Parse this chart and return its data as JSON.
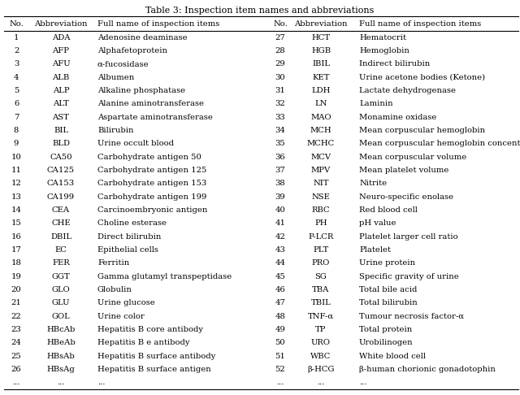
{
  "title": "Table 3: Inspection item names and abbreviations",
  "headers_left": [
    "No.",
    "Abbreviation",
    "Full name of inspection items"
  ],
  "headers_right": [
    "No.",
    "Abbreviation",
    "Full name of inspection items"
  ],
  "left_data": [
    [
      "1",
      "ADA",
      "Adenosine deaminase"
    ],
    [
      "2",
      "AFP",
      "Alphafetoprotein"
    ],
    [
      "3",
      "AFU",
      "α-fucosidase"
    ],
    [
      "4",
      "ALB",
      "Albumen"
    ],
    [
      "5",
      "ALP",
      "Alkaline phosphatase"
    ],
    [
      "6",
      "ALT",
      "Alanine aminotransferase"
    ],
    [
      "7",
      "AST",
      "Aspartate aminotransferase"
    ],
    [
      "8",
      "BIL",
      "Bilirubin"
    ],
    [
      "9",
      "BLD",
      "Urine occult blood"
    ],
    [
      "10",
      "CA50",
      "Carbohydrate antigen 50"
    ],
    [
      "11",
      "CA125",
      "Carbohydrate antigen 125"
    ],
    [
      "12",
      "CA153",
      "Carbohydrate antigen 153"
    ],
    [
      "13",
      "CA199",
      "Carbohydrate antigen 199"
    ],
    [
      "14",
      "CEA",
      "Carcinoembryonic antigen"
    ],
    [
      "15",
      "CHE",
      "Choline esterase"
    ],
    [
      "16",
      "DBIL",
      "Direct bilirubin"
    ],
    [
      "17",
      "EC",
      "Epithelial cells"
    ],
    [
      "18",
      "FER",
      "Ferritin"
    ],
    [
      "19",
      "GGT",
      "Gamma glutamyl transpeptidase"
    ],
    [
      "20",
      "GLO",
      "Globulin"
    ],
    [
      "21",
      "GLU",
      "Urine glucose"
    ],
    [
      "22",
      "GOL",
      "Urine color"
    ],
    [
      "23",
      "HBcAb",
      "Hepatitis B core antibody"
    ],
    [
      "24",
      "HBeAb",
      "Hepatitis B e antibody"
    ],
    [
      "25",
      "HBsAb",
      "Hepatitis B surface antibody"
    ],
    [
      "26",
      "HBsAg",
      "Hepatitis B surface antigen"
    ],
    [
      "...",
      "...",
      "..."
    ]
  ],
  "right_data": [
    [
      "27",
      "HCT",
      "Hematocrit"
    ],
    [
      "28",
      "HGB",
      "Hemoglobin"
    ],
    [
      "29",
      "IBIL",
      "Indirect bilirubin"
    ],
    [
      "30",
      "KET",
      "Urine acetone bodies (Ketone)"
    ],
    [
      "31",
      "LDH",
      "Lactate dehydrogenase"
    ],
    [
      "32",
      "LN",
      "Laminin"
    ],
    [
      "33",
      "MAO",
      "Monamine oxidase"
    ],
    [
      "34",
      "MCH",
      "Mean corpuscular hemoglobin"
    ],
    [
      "35",
      "MCHC",
      "Mean corpuscular hemoglobin concentration"
    ],
    [
      "36",
      "MCV",
      "Mean corpuscular volume"
    ],
    [
      "37",
      "MPV",
      "Mean platelet volume"
    ],
    [
      "38",
      "NIT",
      "Nitrite"
    ],
    [
      "39",
      "NSE",
      "Neuro-specific enolase"
    ],
    [
      "40",
      "RBC",
      "Red blood cell"
    ],
    [
      "41",
      "PH",
      "pH value"
    ],
    [
      "42",
      "P-LCR",
      "Platelet larger cell ratio"
    ],
    [
      "43",
      "PLT",
      "Platelet"
    ],
    [
      "44",
      "PRO",
      "Urine protein"
    ],
    [
      "45",
      "SG",
      "Specific gravity of urine"
    ],
    [
      "46",
      "TBA",
      "Total bile acid"
    ],
    [
      "47",
      "TBIL",
      "Total bilirubin"
    ],
    [
      "48",
      "TNF-α",
      "Tumour necrosis factor-α"
    ],
    [
      "49",
      "TP",
      "Total protein"
    ],
    [
      "50",
      "URO",
      "Urobilinogen"
    ],
    [
      "51",
      "WBC",
      "White blood cell"
    ],
    [
      "52",
      "β-HCG",
      "β-human chorionic gonadotophin"
    ],
    [
      "...",
      "...",
      "..."
    ]
  ],
  "font_size": 7.2,
  "title_font_size": 8.0,
  "fig_width": 6.4,
  "fig_height": 4.86,
  "dpi": 100
}
